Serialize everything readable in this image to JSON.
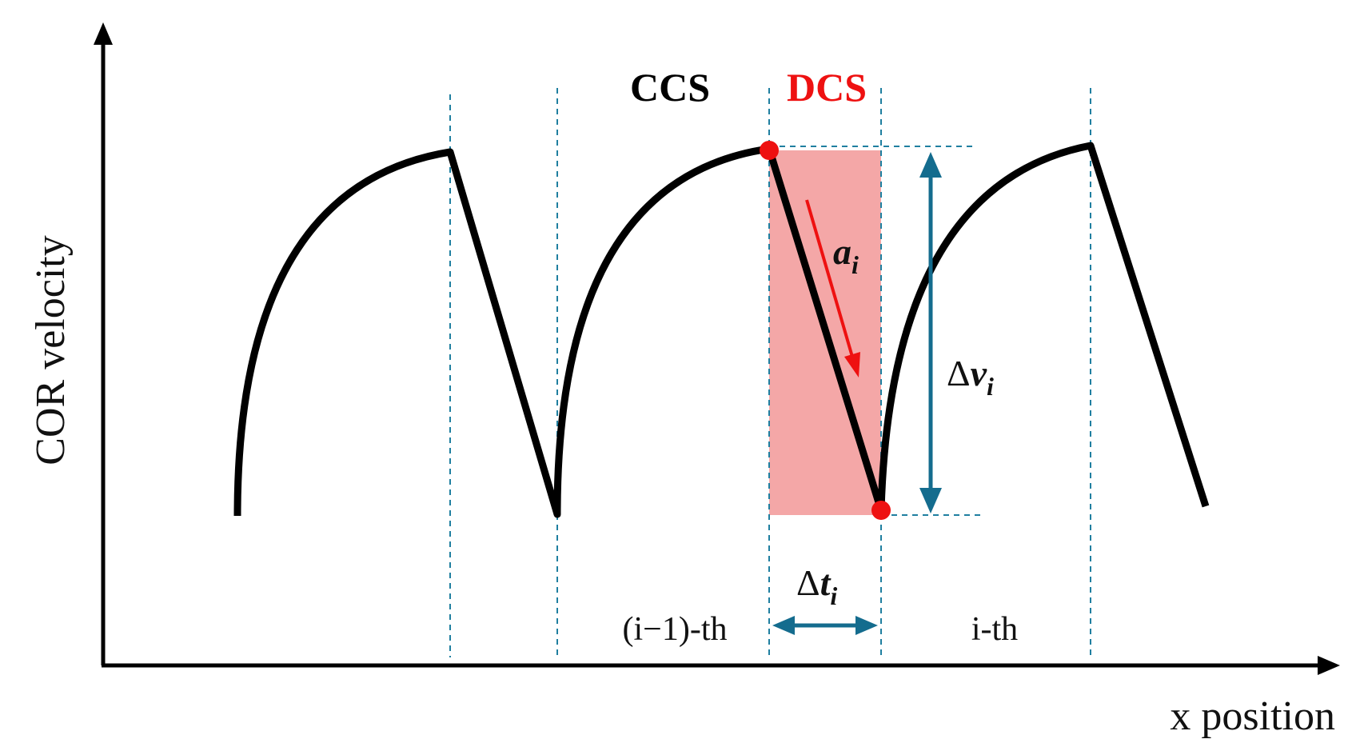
{
  "axes": {
    "y_label": "COR velocity",
    "x_label": "x position"
  },
  "phases": {
    "ccs_label": "CCS",
    "dcs_label": "DCS"
  },
  "cycles": {
    "previous_label": "(i−1)-th",
    "current_label": "i-th"
  },
  "symbols": {
    "acceleration_base": "a",
    "acceleration_sub": "i",
    "velocity_delta": "Δ",
    "velocity_base": "v",
    "velocity_sub": "i",
    "time_delta": "Δ",
    "time_base": "t",
    "time_sub": "i"
  },
  "colors": {
    "curve": "#000000",
    "dcs_highlight": "#f4a7a7",
    "dcs_marker": "#ee1111",
    "guide_lines": "#1f7fa0",
    "dimension_arrows": "#146c8e"
  }
}
